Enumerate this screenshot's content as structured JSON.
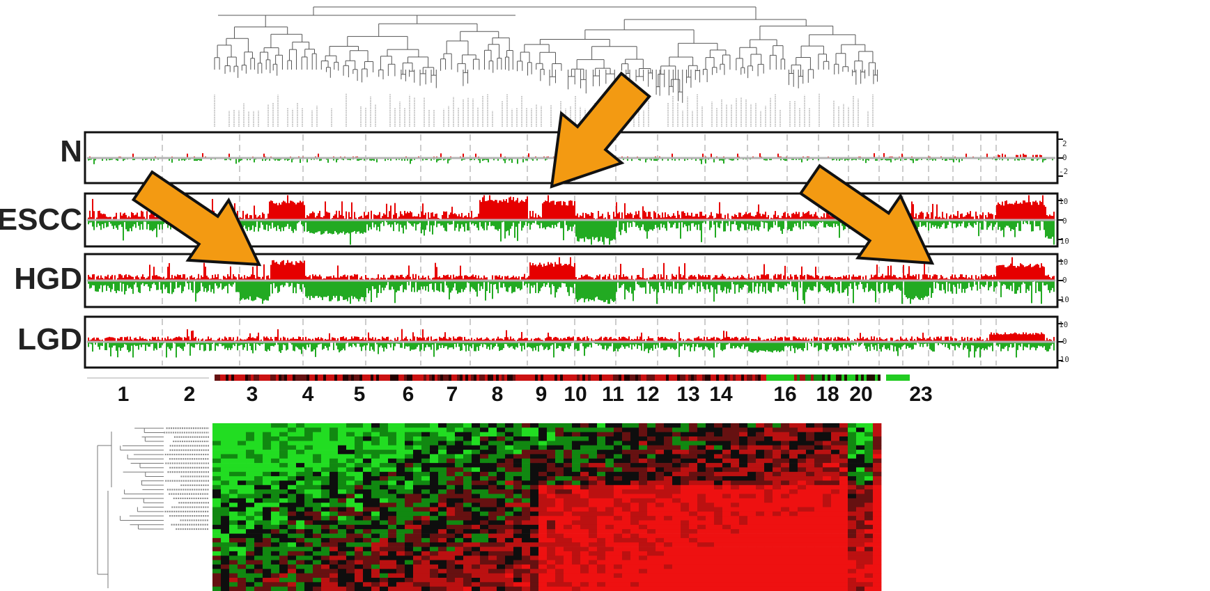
{
  "figure": {
    "tracks": [
      {
        "label": "N",
        "axis_ticks": [
          "2",
          "0",
          "-2"
        ],
        "amplitude": 0.25
      },
      {
        "label": "ESCC",
        "axis_ticks": [
          "10",
          "0",
          "-10"
        ],
        "amplitude": 0.85
      },
      {
        "label": "HGD",
        "axis_ticks": [
          "10",
          "0",
          "-10"
        ],
        "amplitude": 0.8
      },
      {
        "label": "LGD",
        "axis_ticks": [
          "10",
          "0",
          "-10"
        ],
        "amplitude": 0.55
      }
    ],
    "chromosome_labels": [
      "1",
      "2",
      "3",
      "4",
      "5",
      "6",
      "7",
      "8",
      "9",
      "10",
      "11",
      "12",
      "13",
      "14",
      "16",
      "18",
      "20",
      "23"
    ],
    "colors": {
      "gain": "#e60000",
      "loss": "#22aa22",
      "arrow_fill": "#f39a12",
      "arrow_stroke": "#111111",
      "panel_border": "#111111",
      "dendrogram": "#555555"
    },
    "arrows": [
      "arrow-pointing-chromosome-3",
      "arrow-pointing-chromosome-9",
      "arrow-pointing-chromosome-22"
    ]
  }
}
